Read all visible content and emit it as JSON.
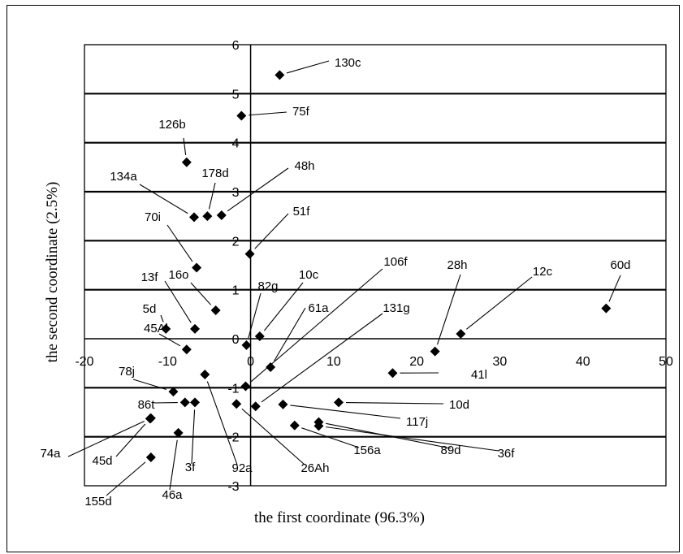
{
  "chart_data": {
    "type": "scatter",
    "xlabel": "the first coordinate (96.3%)",
    "ylabel": "the second coordinate (2.5%)",
    "xlim": [
      -20,
      50
    ],
    "ylim": [
      -3,
      6
    ],
    "xticks": [
      "-20",
      "-10",
      "0",
      "10",
      "20",
      "30",
      "40",
      "50"
    ],
    "yticks": [
      "-3",
      "-2",
      "-1",
      "0",
      "1",
      "2",
      "3",
      "4",
      "5",
      "6"
    ],
    "grid": "horizontal",
    "marker": "diamond",
    "color": "#000000",
    "points": [
      {
        "label": "130c",
        "x": 3.5,
        "y": 5.38
      },
      {
        "label": "75f",
        "x": -1.1,
        "y": 4.55
      },
      {
        "label": "126b",
        "x": -7.7,
        "y": 3.6
      },
      {
        "label": "134a",
        "x": -6.8,
        "y": 2.48
      },
      {
        "label": "178d",
        "x": -5.2,
        "y": 2.5
      },
      {
        "label": "48h",
        "x": -3.5,
        "y": 2.52
      },
      {
        "label": "70i",
        "x": -6.5,
        "y": 1.45
      },
      {
        "label": "51f",
        "x": -0.1,
        "y": 1.73
      },
      {
        "label": "16o",
        "x": -4.2,
        "y": 0.58
      },
      {
        "label": "13f",
        "x": -6.7,
        "y": 0.2
      },
      {
        "label": "5d",
        "x": -10.2,
        "y": 0.2
      },
      {
        "label": "45Al",
        "x": -7.7,
        "y": -0.22
      },
      {
        "label": "82g",
        "x": -0.5,
        "y": -0.13
      },
      {
        "label": "10c",
        "x": 1.1,
        "y": 0.05
      },
      {
        "label": "61a",
        "x": 2.4,
        "y": -0.58
      },
      {
        "label": "106f",
        "x": -0.6,
        "y": -0.97
      },
      {
        "label": "131g",
        "x": 0.6,
        "y": -1.38
      },
      {
        "label": "28h",
        "x": 22.2,
        "y": -0.26
      },
      {
        "label": "12c",
        "x": 25.3,
        "y": 0.1
      },
      {
        "label": "60d",
        "x": 42.8,
        "y": 0.62
      },
      {
        "label": "41l",
        "x": 17.1,
        "y": -0.7
      },
      {
        "label": "10d",
        "x": 10.6,
        "y": -1.3
      },
      {
        "label": "117j",
        "x": 3.9,
        "y": -1.34
      },
      {
        "label": "156a",
        "x": 5.3,
        "y": -1.77
      },
      {
        "label": "89d",
        "x": 8.2,
        "y": -1.7
      },
      {
        "label": "36f",
        "x": 8.2,
        "y": -1.78
      },
      {
        "label": "26Ah",
        "x": -1.7,
        "y": -1.33
      },
      {
        "label": "92a",
        "x": -5.5,
        "y": -0.73
      },
      {
        "label": "78j",
        "x": -9.3,
        "y": -1.08
      },
      {
        "label": "86t",
        "x": -7.9,
        "y": -1.3
      },
      {
        "label": "3f",
        "x": -6.7,
        "y": -1.3
      },
      {
        "label": "74a",
        "x": -12.0,
        "y": -1.62
      },
      {
        "label": "45d",
        "x": -12.1,
        "y": -1.63
      },
      {
        "label": "46a",
        "x": -8.7,
        "y": -1.92
      },
      {
        "label": "155d",
        "x": -12.0,
        "y": -2.42
      }
    ]
  }
}
